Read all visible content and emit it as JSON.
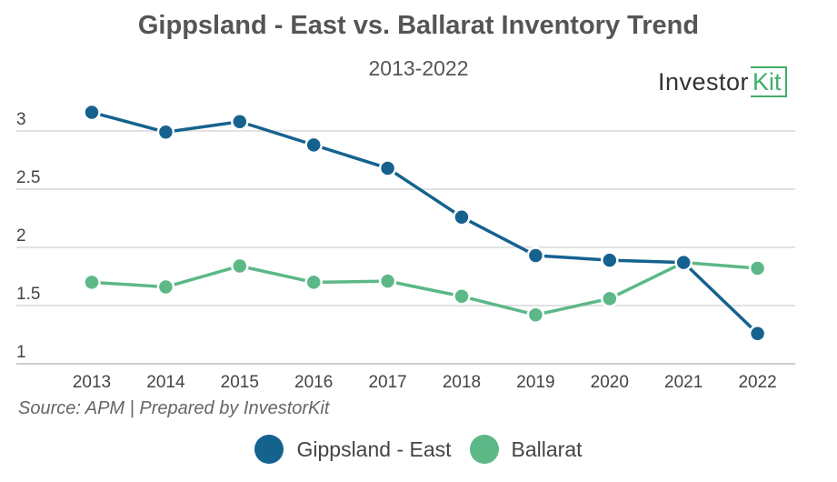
{
  "title": "Gippsland - East vs. Ballarat Inventory Trend",
  "subtitle": "2013-2022",
  "logo": {
    "text": "Investor",
    "accent": "Kit",
    "icon": "investorkit-logo"
  },
  "source": "Source: APM | Prepared by InvestorKit",
  "colors": {
    "gippsland": "#16628f",
    "ballarat": "#5cb887",
    "grid": "#d9d9d9",
    "axis": "#bbbbbb"
  },
  "chart_data": {
    "type": "line",
    "title": "Gippsland - East vs. Ballarat Inventory Trend",
    "subtitle": "2013-2022",
    "x": [
      "2013",
      "2014",
      "2015",
      "2016",
      "2017",
      "2018",
      "2019",
      "2020",
      "2021",
      "2022"
    ],
    "yticks": [
      "1",
      "1.5",
      "2",
      "2.5",
      "3"
    ],
    "ylim": [
      1,
      3.2
    ],
    "grid": true,
    "legend_position": "bottom",
    "series": [
      {
        "name": "Gippsland - East",
        "color": "#16628f",
        "values": [
          3.16,
          2.99,
          3.08,
          2.88,
          2.68,
          2.26,
          1.93,
          1.89,
          1.87,
          1.26
        ]
      },
      {
        "name": "Ballarat",
        "color": "#5cb887",
        "values": [
          1.7,
          1.66,
          1.84,
          1.7,
          1.71,
          1.58,
          1.42,
          1.56,
          1.87,
          1.82
        ]
      }
    ]
  }
}
